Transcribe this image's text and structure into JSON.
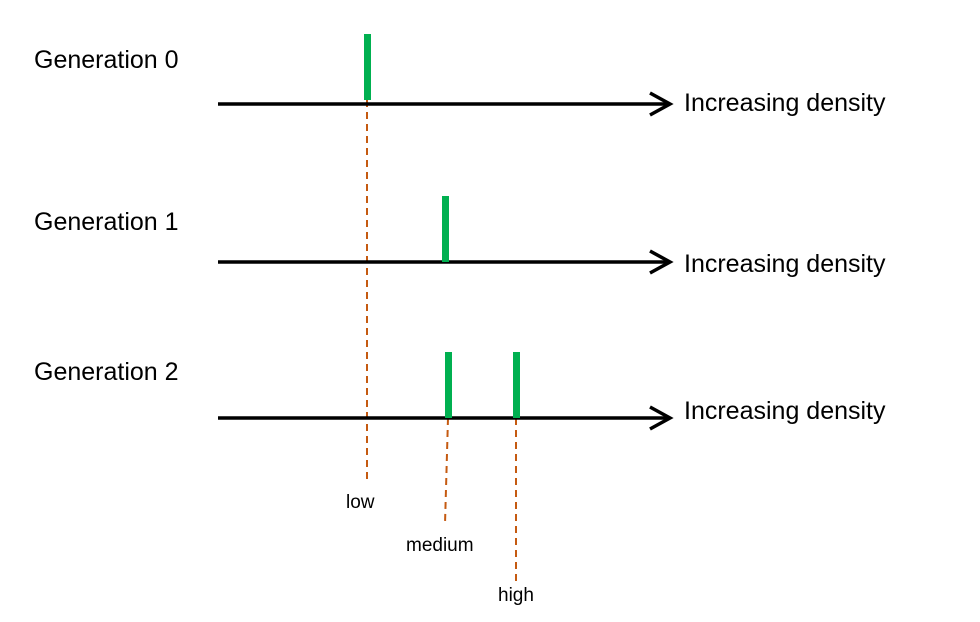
{
  "colors": {
    "marker": "#00b050",
    "guide": "#c55a11",
    "axis": "#000000"
  },
  "rows": [
    {
      "label": "Generation 0",
      "axis_label": "Increasing density",
      "markers": [
        "low"
      ]
    },
    {
      "label": "Generation 1",
      "axis_label": "Increasing density",
      "markers": [
        "medium"
      ]
    },
    {
      "label": "Generation 2",
      "axis_label": "Increasing density",
      "markers": [
        "medium",
        "high"
      ]
    }
  ],
  "levels": {
    "low": "low",
    "medium": "medium",
    "high": "high"
  }
}
